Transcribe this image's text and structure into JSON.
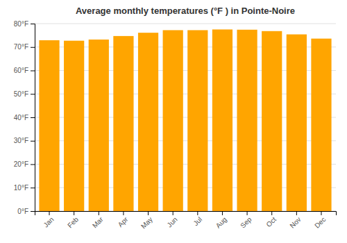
{
  "chart_data": {
    "type": "bar",
    "title": "Average monthly temperatures (°F ) in Pointe-Noire",
    "categories": [
      "Jan",
      "Feb",
      "Mar",
      "Apr",
      "May",
      "Jun",
      "Jul",
      "Aug",
      "Sep",
      "Oct",
      "Nov",
      "Dec"
    ],
    "values": [
      72.9,
      72.7,
      73.2,
      74.7,
      76.1,
      77.2,
      77.2,
      77.5,
      77.4,
      76.8,
      75.4,
      73.6
    ],
    "color": "#FFA500",
    "ylim": [
      0,
      80
    ],
    "yticks": [
      {
        "value": 0,
        "label": "0°F"
      },
      {
        "value": 10,
        "label": "10°F"
      },
      {
        "value": 20,
        "label": "20°F"
      },
      {
        "value": 30,
        "label": "30°F"
      },
      {
        "value": 40,
        "label": "40°F"
      },
      {
        "value": 50,
        "label": "50°F"
      },
      {
        "value": 60,
        "label": "60°F"
      },
      {
        "value": 70,
        "label": "70°F"
      },
      {
        "value": 80,
        "label": "80°F"
      }
    ],
    "grid": true
  }
}
